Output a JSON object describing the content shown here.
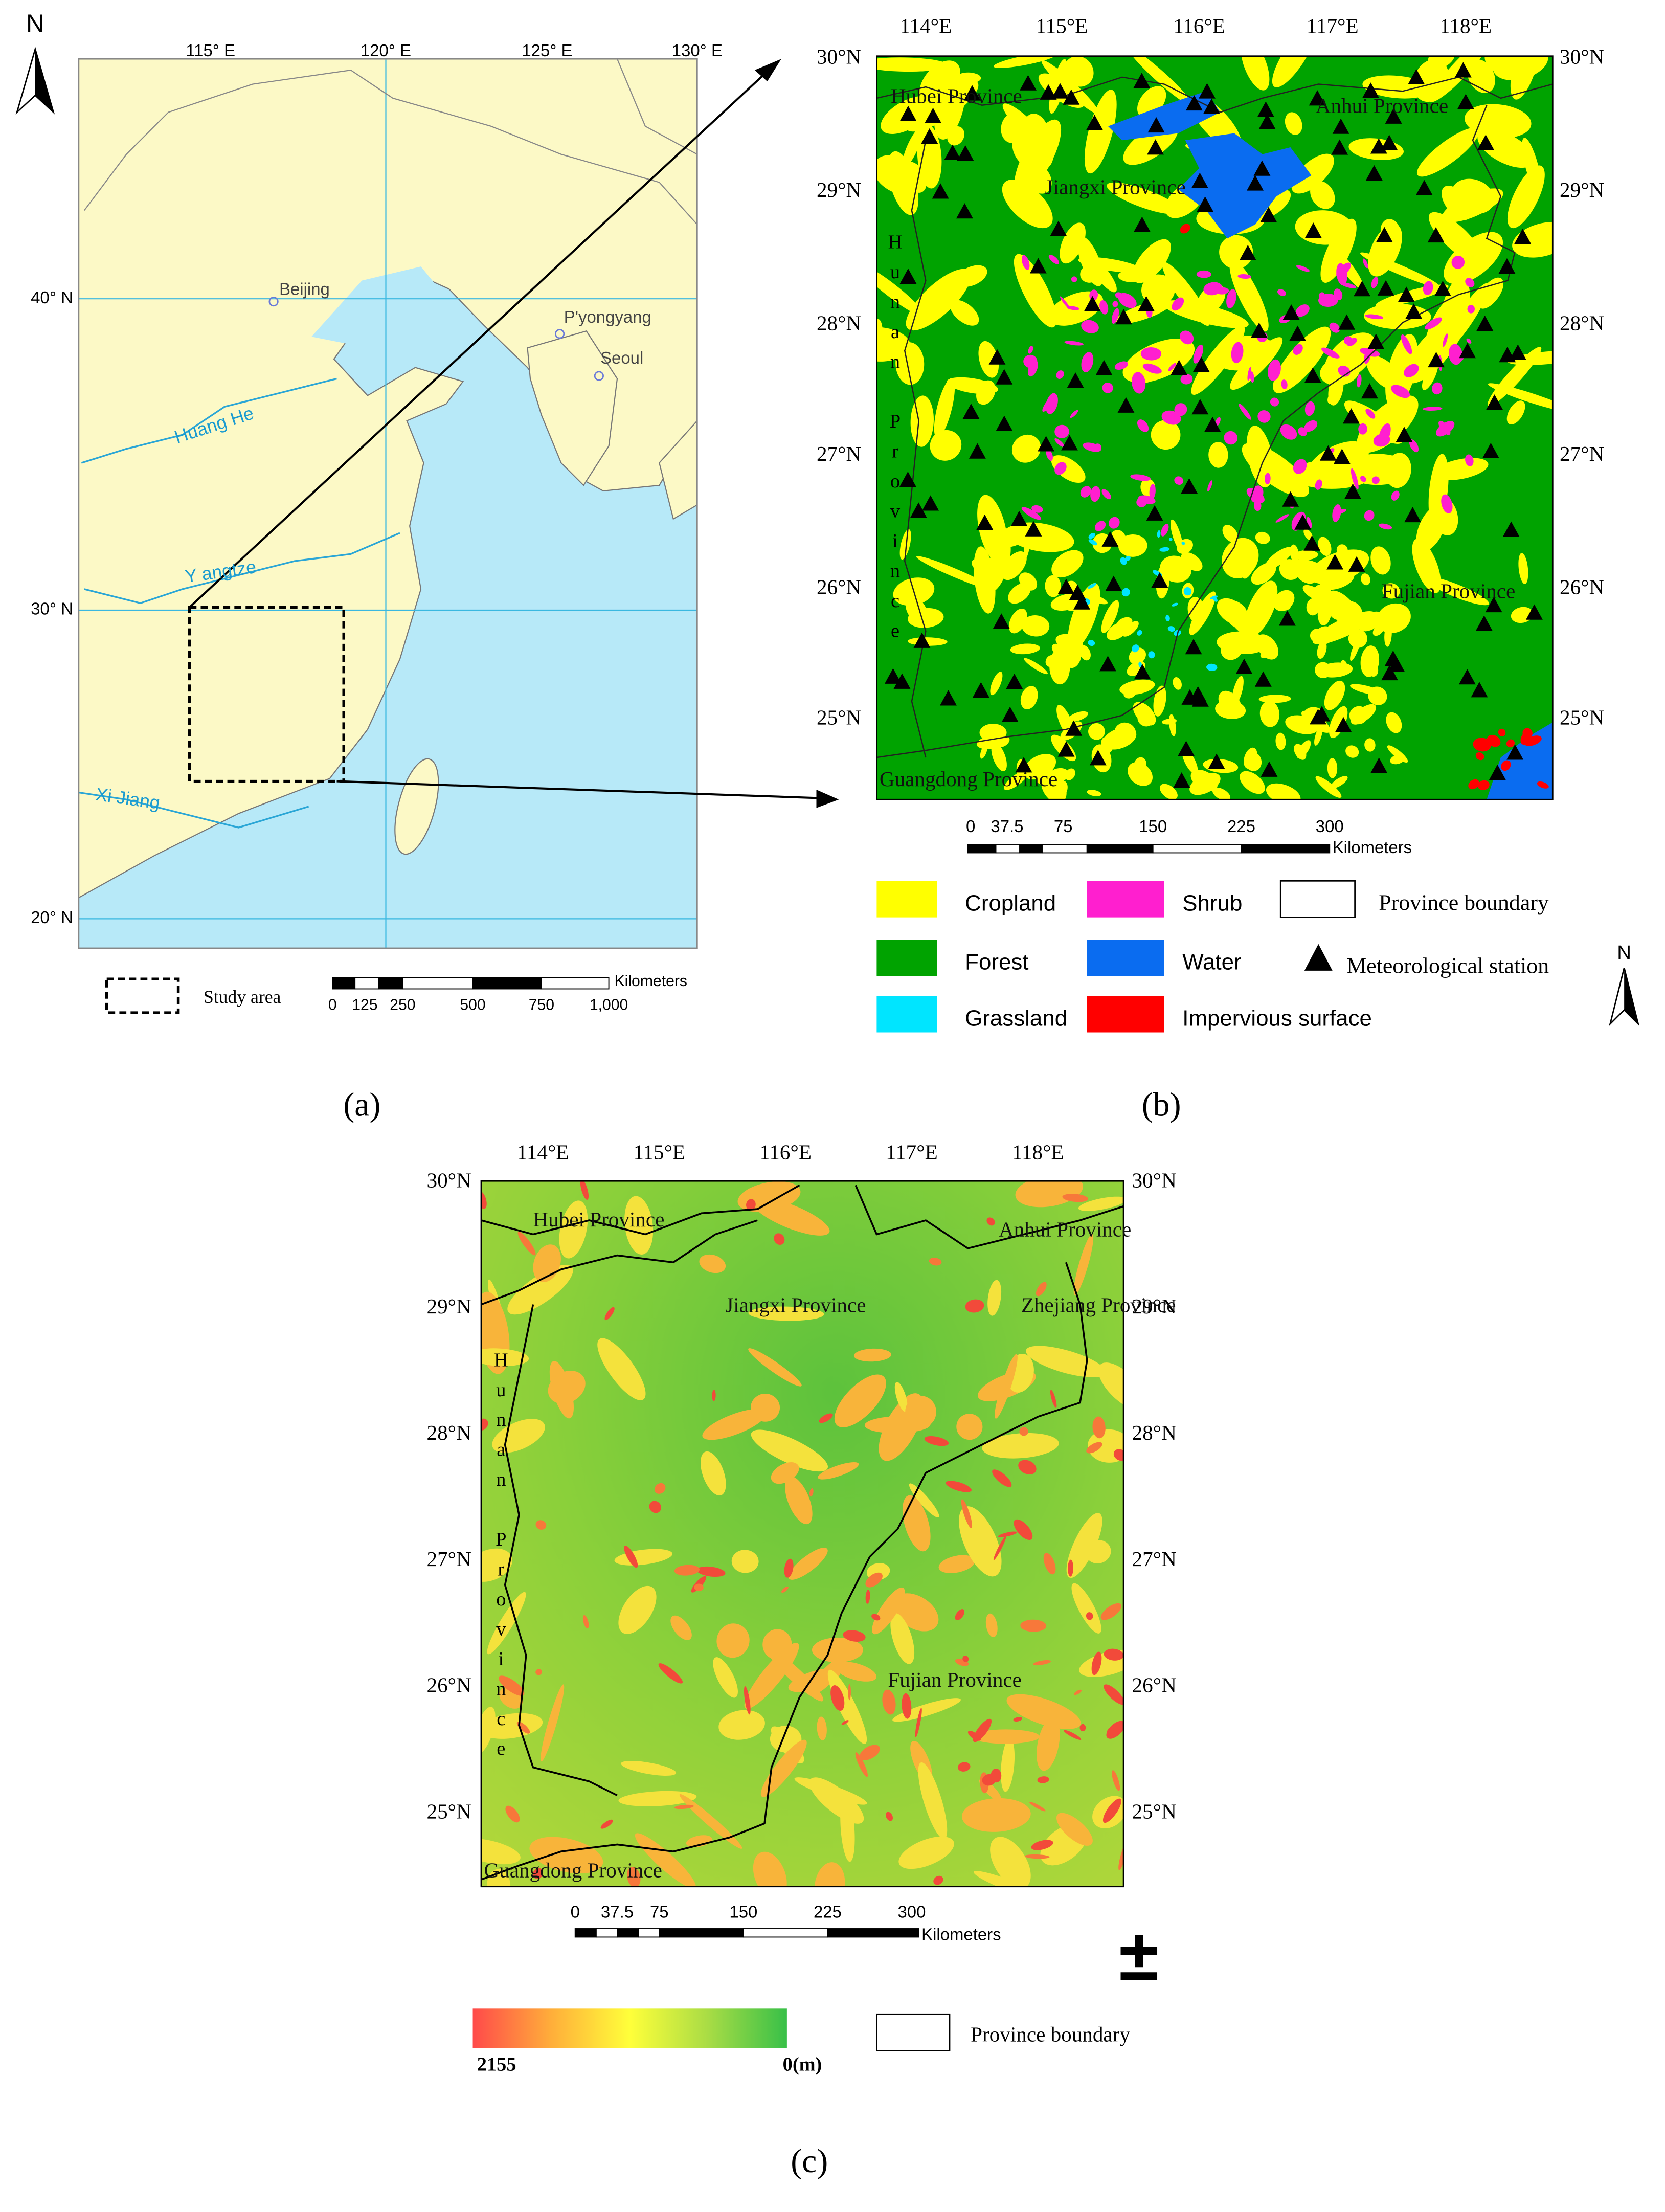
{
  "panel_a": {
    "north": "N",
    "lon_labels": [
      "115° E",
      "120° E",
      "125° E",
      "130° E"
    ],
    "lat_labels": [
      "40° N",
      "30° N",
      "20° N"
    ],
    "places": [
      "Beijing",
      "P'yongyang",
      "Seoul"
    ],
    "rivers": [
      "Huang He",
      "Y angtze",
      "Xi Jiang"
    ],
    "scale_labels": [
      "0",
      "125",
      "250",
      "500",
      "750",
      "1,000"
    ],
    "scale_unit": "Kilometers",
    "legend": "Study area",
    "caption": "(a)"
  },
  "panel_b": {
    "lon_labels": [
      "114°E",
      "115°E",
      "116°E",
      "117°E",
      "118°E"
    ],
    "lat_labels": [
      "30°N",
      "29°N",
      "28°N",
      "27°N",
      "26°N",
      "25°N"
    ],
    "provinces": [
      "Hubei Province",
      "Anhui Province",
      "Jiangxi Province",
      "Hunan Province",
      "Fujian Province",
      "Guangdong Province"
    ],
    "scale_labels": [
      "0",
      "37.5",
      "75",
      "150",
      "225",
      "300"
    ],
    "scale_unit": "Kilometers",
    "legend": [
      {
        "label": "Cropland",
        "color": "#ffff00"
      },
      {
        "label": "Forest",
        "color": "#00a300"
      },
      {
        "label": "Grassland",
        "color": "#00e5ff"
      },
      {
        "label": "Shrub",
        "color": "#ff1fcf"
      },
      {
        "label": "Water",
        "color": "#0a6cf0"
      },
      {
        "label": "Impervious surface",
        "color": "#ff0000"
      },
      {
        "label": "Province boundary"
      },
      {
        "label": "Meteorological station"
      }
    ],
    "north": "N",
    "caption": "(b)"
  },
  "panel_c": {
    "lon_labels": [
      "114°E",
      "115°E",
      "116°E",
      "117°E",
      "118°E"
    ],
    "lat_labels": [
      "30°N",
      "29°N",
      "28°N",
      "27°N",
      "26°N",
      "25°N"
    ],
    "provinces": [
      "Hubei Province",
      "Anhui Province",
      "Zhejiang Province",
      "Jiangxi Province",
      "Hunan Province",
      "Fujian Province",
      "Guangdong Province"
    ],
    "scale_labels": [
      "0",
      "37.5",
      "75",
      "150",
      "225",
      "300"
    ],
    "scale_unit": "Kilometers",
    "colorbar": {
      "max_label": "2155",
      "min_label": "0(m)"
    },
    "legend": "Province boundary",
    "caption": "(c)"
  }
}
